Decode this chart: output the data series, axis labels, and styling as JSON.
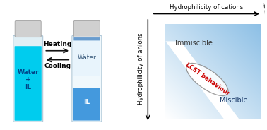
{
  "fig_width": 3.78,
  "fig_height": 1.84,
  "dpi": 100,
  "immiscible_text": "Immiscible",
  "miscible_text": "Miscible",
  "lcst_text": "LCST behaviour",
  "cation_label": "Hydrophilicity of cations",
  "anion_label": "Hydrophilicity of anions",
  "heating_text": "Heating",
  "cooling_text": "Cooling",
  "water_il_text": "Water\n+\nIL",
  "water_text": "Water",
  "il_text": "IL",
  "bg_color": "#ffffff",
  "vial_bg": "#e0eff5",
  "vial_edge": "#b0c8d8",
  "cap_color": "#d0d0d0",
  "cap_edge": "#a0a0a0",
  "cyan_blue": "#00ccee",
  "water_layer": "#e8f4fc",
  "il_layer": "#4499dd",
  "white_color": "#ffffff",
  "red_color": "#cc0000",
  "gray_ellipse": "#888888",
  "text_dark": "#222222",
  "text_blue_dark": "#1a3a6a",
  "blue_deep": "#4488cc",
  "dashed_color": "#555555",
  "arrow_color": "#111111",
  "gradient_blue": "#6aaed6"
}
